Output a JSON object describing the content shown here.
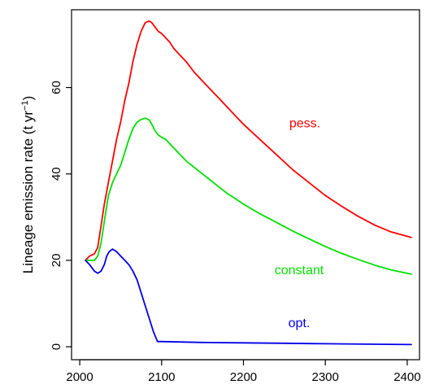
{
  "chart_data": {
    "type": "line",
    "title": "",
    "xlabel": "",
    "ylabel": "Lineage emission rate (t yr",
    "ylabel_sup": "−1",
    "ylabel_close": ")",
    "xlim": [
      1990,
      2415
    ],
    "ylim": [
      -3,
      78
    ],
    "x_ticks": [
      2000,
      2100,
      2200,
      2300,
      2400
    ],
    "y_ticks": [
      0,
      20,
      40,
      60
    ],
    "grid": false,
    "legend": "none",
    "series": [
      {
        "name": "pess.",
        "color": "#ff0000",
        "x": [
          2007,
          2012,
          2018,
          2022,
          2026,
          2030,
          2035,
          2040,
          2045,
          2050,
          2055,
          2060,
          2065,
          2070,
          2075,
          2080,
          2085,
          2088,
          2092,
          2096,
          2100,
          2105,
          2110,
          2115,
          2120,
          2130,
          2140,
          2150,
          2160,
          2170,
          2180,
          2190,
          2200,
          2220,
          2240,
          2260,
          2280,
          2300,
          2320,
          2340,
          2360,
          2380,
          2405
        ],
        "y": [
          20,
          21,
          21.5,
          23,
          28,
          33,
          38,
          43,
          48,
          52,
          57,
          61,
          66,
          70,
          73,
          75,
          75.4,
          75,
          74,
          73,
          72.5,
          71.5,
          70.5,
          69,
          68,
          66,
          63.5,
          61.5,
          59.5,
          57.5,
          55.5,
          53.5,
          51.5,
          48,
          44.5,
          41,
          38,
          35,
          32.5,
          30.2,
          28.2,
          26.6,
          25.3
        ]
      },
      {
        "name": "constant",
        "color": "#00e000",
        "x": [
          2007,
          2012,
          2018,
          2022,
          2026,
          2030,
          2035,
          2040,
          2045,
          2050,
          2055,
          2060,
          2065,
          2070,
          2075,
          2080,
          2085,
          2088,
          2092,
          2096,
          2100,
          2105,
          2110,
          2120,
          2130,
          2140,
          2150,
          2160,
          2170,
          2180,
          2190,
          2200,
          2220,
          2240,
          2260,
          2280,
          2300,
          2320,
          2340,
          2360,
          2380,
          2405
        ],
        "y": [
          20,
          20,
          20,
          21,
          24,
          29,
          35,
          38,
          40,
          42,
          45,
          48,
          50.5,
          52,
          52.6,
          52.9,
          52.5,
          51.5,
          50,
          49,
          48.5,
          48,
          47,
          45,
          43,
          41.5,
          40,
          38.5,
          37,
          35.5,
          34.3,
          33,
          30.8,
          28.8,
          26.8,
          25,
          23.2,
          21.6,
          20.2,
          18.9,
          17.8,
          16.8
        ]
      },
      {
        "name": "opt.",
        "color": "#0000e6",
        "x": [
          2007,
          2012,
          2018,
          2022,
          2026,
          2030,
          2033,
          2036,
          2040,
          2045,
          2050,
          2055,
          2060,
          2065,
          2070,
          2075,
          2080,
          2085,
          2090,
          2095,
          2100,
          2150,
          2200,
          2250,
          2300,
          2350,
          2405
        ],
        "y": [
          20,
          19,
          17.5,
          17,
          17.5,
          19,
          21,
          22,
          22.6,
          22,
          21,
          20,
          19,
          17.5,
          15.5,
          12.5,
          9.5,
          6.5,
          3.5,
          1.2,
          1.2,
          1.0,
          0.9,
          0.8,
          0.7,
          0.6,
          0.5
        ]
      }
    ],
    "annotations": [
      {
        "text": "pess.",
        "x": 2275,
        "y": 50.8,
        "color": "#ff0000"
      },
      {
        "text": "constant",
        "x": 2268,
        "y": 16.8,
        "color": "#00e000"
      },
      {
        "text": "opt.",
        "x": 2268,
        "y": 4.5,
        "color": "#0000e6"
      }
    ]
  }
}
